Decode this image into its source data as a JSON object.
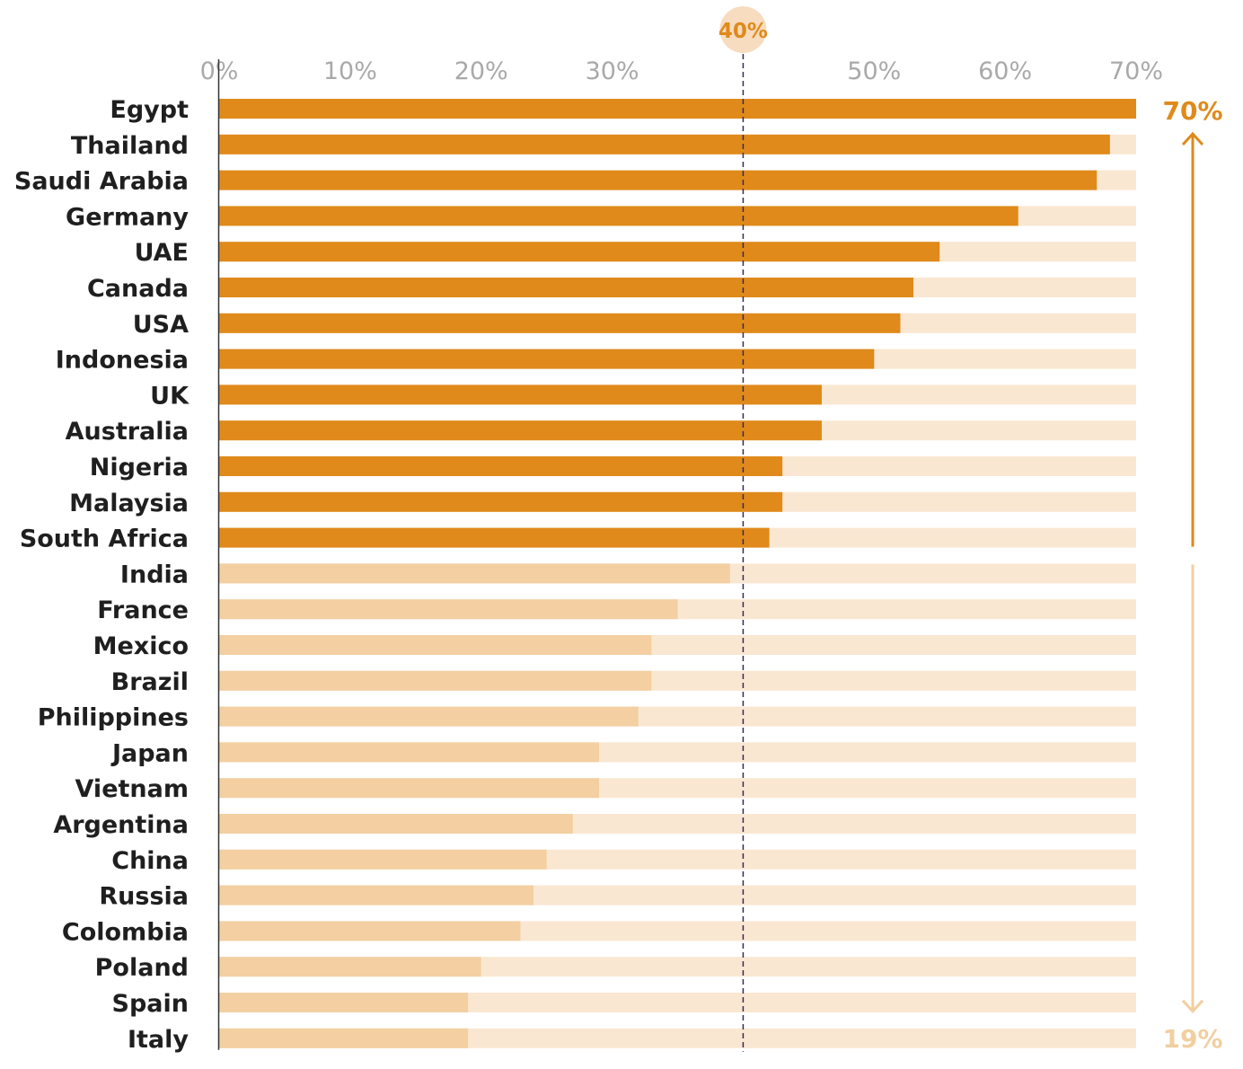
{
  "chart_data": {
    "type": "bar",
    "orientation": "horizontal",
    "categories": [
      "Egypt",
      "Thailand",
      "Saudi Arabia",
      "Germany",
      "UAE",
      "Canada",
      "USA",
      "Indonesia",
      "UK",
      "Australia",
      "Nigeria",
      "Malaysia",
      "South Africa",
      "India",
      "France",
      "Mexico",
      "Brazil",
      "Philippines",
      "Japan",
      "Vietnam",
      "Argentina",
      "China",
      "Russia",
      "Colombia",
      "Poland",
      "Spain",
      "Italy"
    ],
    "values": [
      70,
      68,
      67,
      61,
      55,
      53,
      52,
      50,
      46,
      46,
      43,
      43,
      42,
      39,
      35,
      33,
      33,
      32,
      29,
      29,
      27,
      25,
      24,
      23,
      20,
      19,
      19
    ],
    "xlim": [
      0,
      70
    ],
    "xticks": [
      0,
      10,
      20,
      30,
      50,
      60,
      70
    ],
    "xtick_labels": [
      "0%",
      "10%",
      "20%",
      "30%",
      "50%",
      "60%",
      "70%"
    ],
    "reference_line": {
      "value": 40,
      "label": "40%"
    },
    "range_labels": {
      "max": "70%",
      "min": "19%"
    },
    "title": "",
    "xlabel": "",
    "ylabel": "",
    "grid": false,
    "legend": "none",
    "colors": {
      "above": "#df8a1b",
      "below": "#f3cfa2",
      "track": "#fae7d2",
      "tick": "#a9a9a9",
      "label": "#1f1f1f",
      "refline": "#3a2a55",
      "ref_badge": "#f7dcc0",
      "max_label": "#df8a1b",
      "min_label": "#f1cfa0"
    }
  }
}
